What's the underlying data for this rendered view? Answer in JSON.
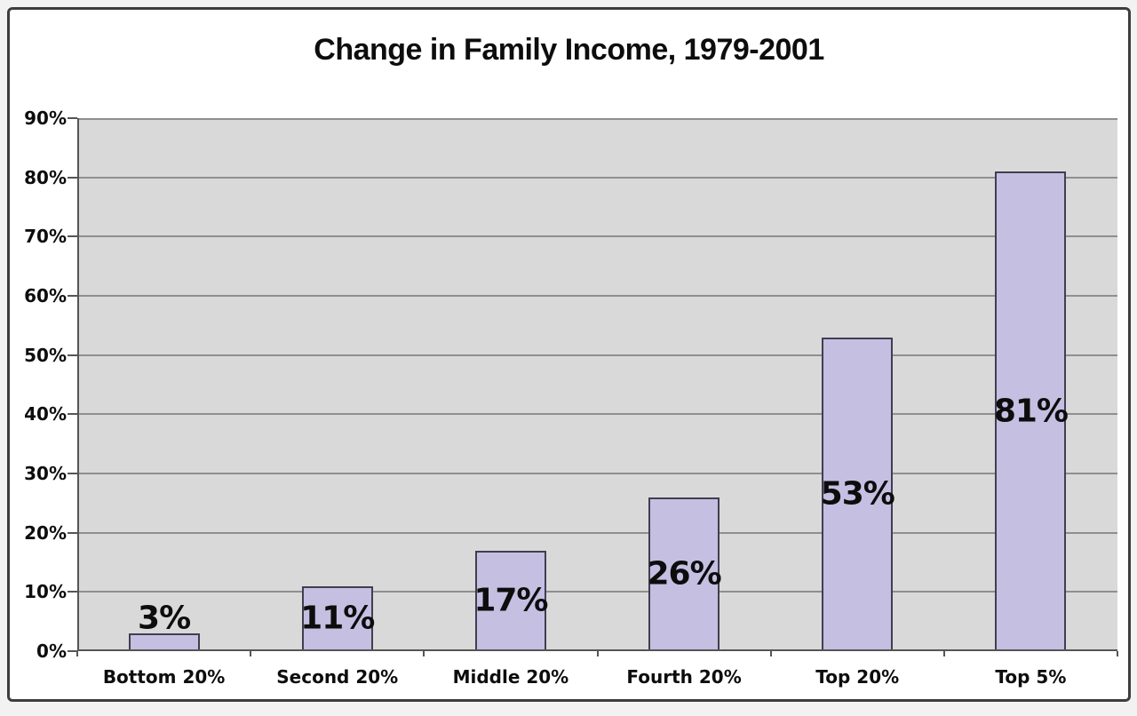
{
  "chart_data": {
    "type": "bar",
    "title": "Change in Family Income, 1979-2001",
    "categories": [
      "Bottom 20%",
      "Second 20%",
      "Middle 20%",
      "Fourth 20%",
      "Top 20%",
      "Top 5%"
    ],
    "values": [
      3,
      11,
      17,
      26,
      53,
      81
    ],
    "bar_labels": [
      "3%",
      "11%",
      "17%",
      "26%",
      "53%",
      "81%"
    ],
    "y_tick_labels": [
      "0%",
      "10%",
      "20%",
      "30%",
      "40%",
      "50%",
      "60%",
      "70%",
      "80%",
      "90%"
    ],
    "xlabel": "",
    "ylabel": "",
    "ylim": [
      0,
      90
    ],
    "grid": true,
    "legend_position": "none",
    "colors": {
      "bar_fill": "#c5bfe2",
      "bar_border": "#413e50",
      "plot_background": "#d9d9d9",
      "gridline": "#8f8f8f",
      "axis": "#555555",
      "text": "#0d0d0d",
      "frame_border": "#3d3d3d",
      "frame_background": "#ffffff"
    }
  }
}
